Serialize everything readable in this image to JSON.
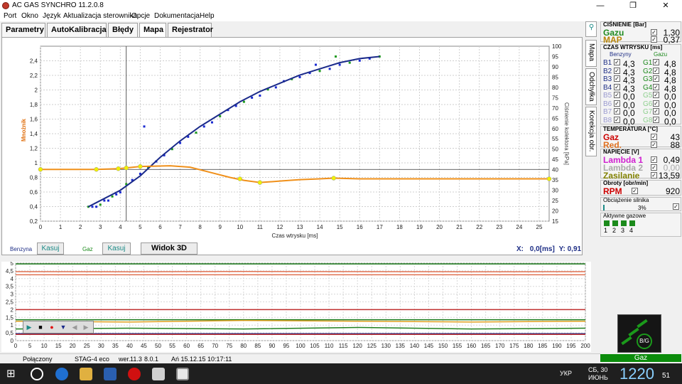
{
  "window": {
    "title": "AC GAS SYNCHRO  11.2.0.8",
    "minimize": "—",
    "restore": "❐",
    "close": "✕"
  },
  "menu": [
    "Port",
    "Okno",
    "Język",
    "Aktualizacja sterownika",
    "Opcje",
    "Dokumentacja",
    "Help"
  ],
  "tabs": [
    "Parametry",
    "AutoKalibracja",
    "Błędy",
    "Mapa",
    "Rejestrator"
  ],
  "active_tab": "Mapa",
  "side_tabs": [
    "Mapa",
    "Odchyłka",
    "Korekcja obr."
  ],
  "side_tab_top_icon": "plug-icon",
  "controls": {
    "benzyna_label": "Benzyna",
    "kasuj1": "Kasuj",
    "gaz_label": "Gaz",
    "kasuj2": "Kasuj",
    "widok3d": "Widok 3D",
    "x_label": "X:",
    "x_value": "0,0[ms]",
    "y_label": "Y:",
    "y_value": "0,91"
  },
  "panels": {
    "cisnienie": {
      "title": "CIŚNIENIE [Bar]",
      "rows": [
        {
          "label": "Gazu",
          "value": "1,30",
          "color": "#1e8a1e"
        },
        {
          "label": "MAP",
          "value": "0,37",
          "color": "#b8860b"
        }
      ]
    },
    "czas": {
      "title": "CZAS WTRYSKU [ms]",
      "head_b": "Benzyny",
      "head_g": "Gazu",
      "rows": [
        {
          "b": "B1",
          "bv": "4,3",
          "g": "G1",
          "gv": "4,8",
          "active": true
        },
        {
          "b": "B2",
          "bv": "4,3",
          "g": "G2",
          "gv": "4,8",
          "active": true
        },
        {
          "b": "B3",
          "bv": "4,3",
          "g": "G3",
          "gv": "4,8",
          "active": true
        },
        {
          "b": "B4",
          "bv": "4,3",
          "g": "G4",
          "gv": "4,8",
          "active": true
        },
        {
          "b": "B5",
          "bv": "0,0",
          "g": "G5",
          "gv": "0,0",
          "active": false
        },
        {
          "b": "B6",
          "bv": "0,0",
          "g": "G6",
          "gv": "0,0",
          "active": false
        },
        {
          "b": "B7",
          "bv": "0,0",
          "g": "G7",
          "gv": "0,0",
          "active": false
        },
        {
          "b": "B8",
          "bv": "0,0",
          "g": "G8",
          "gv": "0,0",
          "active": false
        }
      ]
    },
    "temperatura": {
      "title": "TEMPERATURA [°C]",
      "rows": [
        {
          "label": "Gaz",
          "value": "43",
          "color": "#cc0000"
        },
        {
          "label": "Red.",
          "value": "88",
          "color": "#e07020"
        }
      ]
    },
    "napiecie": {
      "title": "NAPIĘCIE [V]",
      "rows": [
        {
          "label": "Lambda 1",
          "value": "0,49",
          "color": "#d020d0",
          "dim": false
        },
        {
          "label": "Lambda 2",
          "value": "0,00",
          "color": "#aaaaaa",
          "dim": true
        },
        {
          "label": "Zasilanie",
          "value": "13,59",
          "color": "#808000",
          "dim": false
        }
      ]
    },
    "obroty": {
      "title": "Obroty [obr/min]",
      "label": "RPM",
      "value": "920"
    },
    "obciazenie": {
      "title": "Obciążenie silnika",
      "value": "3%"
    },
    "aktywne": {
      "title": "Aktywne gazowe",
      "items": [
        "1",
        "2",
        "3",
        "4"
      ]
    },
    "gaz_button": "Gaz",
    "logo_text": "B/G"
  },
  "status": {
    "connection": "Połączony",
    "device": "STAG-4 eco",
    "ver_label": "wer.",
    "ver": "11.3",
    "ver2": "8.0.1",
    "date": "Ań 15.12.15 10:17:11"
  },
  "taskbar": {
    "lang": "УКР",
    "day": "СБ, 30",
    "month": "ИЮНЬ",
    "time": "1220",
    "seconds": "51"
  },
  "colors": {
    "benzyna_fit": "#1a2a8a",
    "gas_points": "#1f9a1f",
    "multiplier": "#f0901a",
    "marker": "#f0f000"
  },
  "chart_data": [
    {
      "type": "scatter",
      "xlabel": "Czas wtrysku [ms]",
      "ylabel": "Mnożnik",
      "y2label": "Ciśnienie kolektora [kPa]",
      "xlim": [
        0,
        25.5
      ],
      "ylim": [
        0.2,
        2.6
      ],
      "y2lim": [
        15,
        100
      ],
      "xticks": [
        0,
        1,
        2,
        3,
        4,
        5,
        6,
        7,
        8,
        9,
        10,
        11,
        12,
        13,
        14,
        15,
        16,
        17,
        18,
        19,
        20,
        21,
        22,
        23,
        24,
        25
      ],
      "yticks": [
        "0,2",
        "0,4",
        "0,6",
        "0,8",
        "1",
        "1,2",
        "1,4",
        "1,6",
        "1,8",
        "2",
        "2,2",
        "2,4"
      ],
      "y2ticks": [
        15,
        20,
        25,
        30,
        35,
        40,
        45,
        50,
        55,
        60,
        65,
        70,
        75,
        80,
        85,
        90,
        95,
        100
      ],
      "grid": true,
      "cursor_x": 4.3,
      "cursor_y": 0.91,
      "series": [
        {
          "axis": "y2",
          "points": [
            [
              2.4,
              22
            ],
            [
              2.6,
              22
            ],
            [
              2.8,
              22
            ],
            [
              3.0,
              23
            ],
            [
              3.2,
              25
            ],
            [
              3.4,
              25
            ],
            [
              3.6,
              27
            ],
            [
              3.8,
              28
            ],
            [
              4.0,
              29
            ],
            [
              4.3,
              33
            ],
            [
              4.6,
              35
            ],
            [
              5.0,
              38
            ],
            [
              5.4,
              41
            ],
            [
              5.8,
              44
            ],
            [
              6.2,
              47
            ],
            [
              6.6,
              50
            ],
            [
              7.0,
              53
            ],
            [
              7.4,
              56
            ],
            [
              7.8,
              58
            ],
            [
              8.2,
              61
            ],
            [
              8.6,
              63
            ],
            [
              9.0,
              66
            ],
            [
              9.4,
              69
            ],
            [
              9.8,
              71
            ],
            [
              10.2,
              73
            ],
            [
              10.6,
              75
            ],
            [
              11.0,
              76
            ],
            [
              11.4,
              79
            ],
            [
              11.8,
              80
            ],
            [
              12.2,
              83
            ],
            [
              12.6,
              84
            ],
            [
              13.0,
              85
            ],
            [
              13.5,
              87
            ],
            [
              14.0,
              88
            ],
            [
              14.5,
              89
            ],
            [
              15.0,
              91
            ],
            [
              15.5,
              92
            ],
            [
              16.0,
              93
            ],
            [
              16.5,
              94
            ],
            [
              17.0,
              95
            ],
            [
              5.2,
              61
            ],
            [
              13.8,
              91
            ],
            [
              14.8,
              95
            ]
          ]
        },
        {
          "axis": "y2",
          "fit": [
            [
              2.4,
              22
            ],
            [
              3.0,
              25
            ],
            [
              4.0,
              30
            ],
            [
              5.0,
              37
            ],
            [
              6.0,
              46
            ],
            [
              7.0,
              54
            ],
            [
              8.0,
              61
            ],
            [
              9.0,
              67
            ],
            [
              10.0,
              73
            ],
            [
              11.0,
              78
            ],
            [
              12.0,
              82
            ],
            [
              13.0,
              86
            ],
            [
              14.0,
              89
            ],
            [
              15.0,
              92
            ],
            [
              16.0,
              94
            ],
            [
              17.0,
              95
            ]
          ]
        },
        {
          "axis": "y",
          "line": [
            [
              0,
              0.91
            ],
            [
              2.8,
              0.91
            ],
            [
              3.9,
              0.92
            ],
            [
              4.3,
              0.93
            ],
            [
              5.0,
              0.95
            ],
            [
              6.5,
              0.96
            ],
            [
              7.5,
              0.94
            ],
            [
              8.5,
              0.87
            ],
            [
              9.5,
              0.8
            ],
            [
              10.2,
              0.76
            ],
            [
              11.0,
              0.73
            ],
            [
              12.0,
              0.75
            ],
            [
              13.0,
              0.77
            ],
            [
              14.0,
              0.78
            ],
            [
              14.7,
              0.79
            ],
            [
              16.0,
              0.78
            ],
            [
              20.0,
              0.78
            ],
            [
              25.5,
              0.78
            ]
          ],
          "markers": [
            [
              0,
              0.91
            ],
            [
              2.8,
              0.91
            ],
            [
              3.9,
              0.92
            ],
            [
              4.3,
              0.93
            ],
            [
              5.0,
              0.95
            ],
            [
              10.0,
              0.78
            ],
            [
              11.0,
              0.73
            ],
            [
              14.7,
              0.79
            ],
            [
              25.5,
              0.78
            ]
          ]
        }
      ]
    },
    {
      "type": "line",
      "xlim": [
        0,
        200
      ],
      "ylim": [
        0,
        5
      ],
      "xticks": [
        0,
        5,
        10,
        15,
        20,
        25,
        30,
        35,
        40,
        45,
        50,
        55,
        60,
        65,
        70,
        75,
        80,
        85,
        90,
        95,
        100,
        105,
        110,
        115,
        120,
        125,
        130,
        135,
        140,
        145,
        150,
        155,
        160,
        165,
        170,
        175,
        180,
        185,
        190,
        195,
        200
      ],
      "yticks": [
        "0",
        "0,5",
        "1",
        "1,5",
        "2",
        "2,5",
        "3",
        "3,5",
        "4",
        "4,5",
        "5"
      ],
      "series": [
        {
          "color": "#1a7a1a",
          "values": [
            4.95,
            4.95,
            4.95,
            4.95,
            4.95,
            4.95
          ]
        },
        {
          "color": "#e07050",
          "values": [
            4.45,
            4.44,
            4.46,
            4.45,
            4.44,
            4.45
          ]
        },
        {
          "color": "#e07050",
          "values": [
            4.25,
            4.25,
            4.25,
            4.25,
            4.25,
            4.25
          ]
        },
        {
          "color": "#c03030",
          "values": [
            2.0,
            2.0,
            2.0,
            2.0,
            2.0,
            2.0
          ]
        },
        {
          "color": "#1a7a1a",
          "values": [
            1.35,
            1.35,
            1.35,
            1.35,
            1.35,
            1.35
          ]
        },
        {
          "color": "#e0a020",
          "values": [
            1.25,
            1.2,
            1.3,
            1.25,
            1.2,
            1.25
          ]
        },
        {
          "color": "#208020",
          "values": [
            0.75,
            0.8,
            0.75,
            0.85,
            0.75,
            0.8
          ]
        },
        {
          "color": "#1a2a8a",
          "values": [
            0.45,
            0.45,
            0.45,
            0.45,
            0.45,
            0.45
          ]
        },
        {
          "color": "#c03030",
          "values": [
            0.4,
            0.4,
            0.4,
            0.4,
            0.4,
            0.4
          ]
        }
      ]
    }
  ]
}
